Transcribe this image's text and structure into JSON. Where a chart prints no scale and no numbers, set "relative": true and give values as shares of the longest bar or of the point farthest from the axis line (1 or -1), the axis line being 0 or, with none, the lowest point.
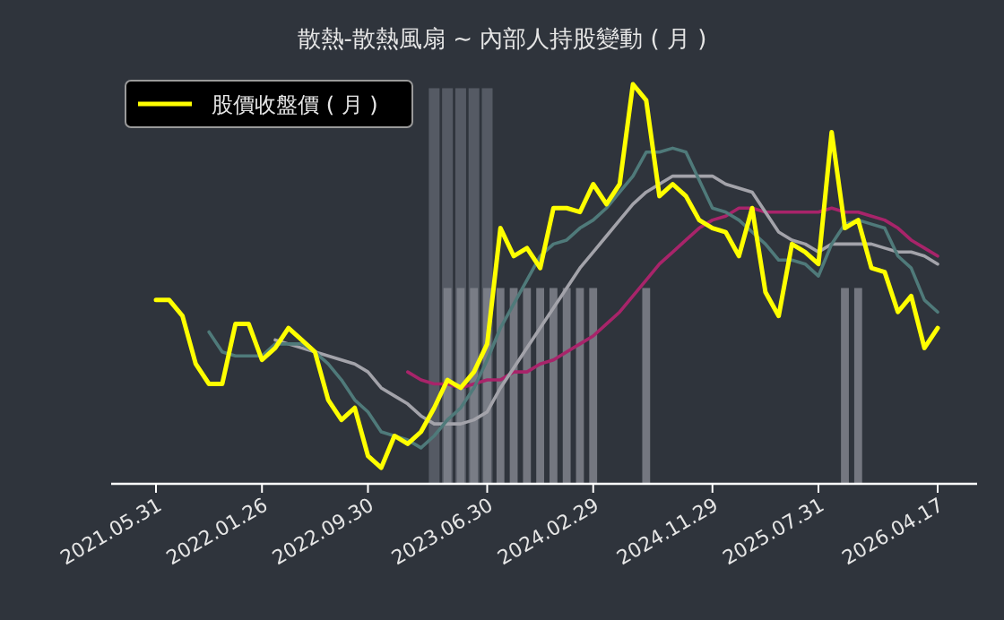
{
  "chart_data": {
    "type": "line",
    "title": "散熱-散熱風扇 ~ 內部人持股變動 ( 月 )",
    "relative": true,
    "legend": "top left",
    "categories": [
      "2021.05.31",
      null,
      null,
      null,
      null,
      null,
      null,
      null,
      "2022.01.26",
      null,
      null,
      null,
      null,
      null,
      null,
      null,
      "2022.09.30",
      null,
      null,
      null,
      null,
      null,
      null,
      null,
      null,
      "2023.06.30",
      null,
      null,
      null,
      null,
      null,
      null,
      null,
      "2024.02.29",
      null,
      null,
      null,
      null,
      null,
      null,
      null,
      null,
      "2024.11.29",
      null,
      null,
      null,
      null,
      null,
      null,
      null,
      "2025.07.31",
      null,
      null,
      null,
      null,
      null,
      null,
      null,
      null,
      "2026.04.17"
    ],
    "series": [
      {
        "type": "bar",
        "color": "#5c616b",
        "values": [
          null,
          null,
          null,
          null,
          null,
          null,
          null,
          null,
          null,
          null,
          null,
          null,
          null,
          null,
          null,
          null,
          null,
          null,
          null,
          null,
          null,
          0.99,
          0.99,
          0.99,
          0.99,
          0.99,
          null,
          null,
          null,
          null,
          null,
          null,
          null,
          null,
          null,
          null,
          null,
          null,
          null,
          null,
          null,
          null,
          null,
          null,
          null,
          null,
          null,
          null,
          null,
          null,
          null,
          null,
          null,
          null,
          null,
          null,
          null,
          null,
          null,
          null
        ]
      },
      {
        "type": "bar",
        "color": "#80848c",
        "values": [
          null,
          null,
          null,
          null,
          null,
          null,
          null,
          null,
          null,
          null,
          null,
          null,
          null,
          null,
          null,
          null,
          null,
          null,
          null,
          null,
          null,
          null,
          0.49,
          0.49,
          0.49,
          0.49,
          0.49,
          0.49,
          0.49,
          0.49,
          0.49,
          0.49,
          0.49,
          0.49,
          null,
          null,
          null,
          0.49,
          null,
          null,
          null,
          null,
          null,
          null,
          null,
          null,
          null,
          null,
          null,
          null,
          null,
          null,
          0.49,
          0.49,
          null,
          null,
          null,
          null,
          null,
          null
        ]
      },
      {
        "color": "#a8246a",
        "values": [
          null,
          null,
          null,
          null,
          null,
          null,
          null,
          null,
          null,
          null,
          null,
          null,
          null,
          null,
          null,
          null,
          null,
          null,
          null,
          0.28,
          0.26,
          0.25,
          0.25,
          0.24,
          0.25,
          0.26,
          0.26,
          0.28,
          0.28,
          0.3,
          0.31,
          0.33,
          0.35,
          0.37,
          0.4,
          0.43,
          0.47,
          0.51,
          0.55,
          0.58,
          0.61,
          0.64,
          0.66,
          0.67,
          0.69,
          0.69,
          0.68,
          0.68,
          0.68,
          0.68,
          0.68,
          0.69,
          0.68,
          0.68,
          0.67,
          0.66,
          0.64,
          0.61,
          0.59,
          0.57
        ]
      },
      {
        "color": "#a3a3aa",
        "values": [
          null,
          null,
          null,
          null,
          null,
          null,
          null,
          null,
          null,
          0.36,
          0.35,
          0.34,
          0.33,
          0.32,
          0.31,
          0.3,
          0.28,
          0.24,
          0.22,
          0.2,
          0.17,
          0.15,
          0.15,
          0.15,
          0.16,
          0.18,
          0.24,
          0.29,
          0.34,
          0.39,
          0.44,
          0.49,
          0.54,
          0.58,
          0.62,
          0.66,
          0.7,
          0.73,
          0.75,
          0.77,
          0.77,
          0.77,
          0.77,
          0.75,
          0.74,
          0.73,
          0.68,
          0.63,
          0.61,
          0.6,
          0.58,
          0.6,
          0.6,
          0.6,
          0.6,
          0.59,
          0.58,
          0.58,
          0.57,
          0.55
        ]
      },
      {
        "color": "#4f7a7a",
        "values": [
          null,
          null,
          null,
          null,
          0.38,
          0.33,
          0.32,
          0.32,
          0.32,
          0.35,
          0.35,
          0.35,
          0.33,
          0.3,
          0.26,
          0.21,
          0.18,
          0.13,
          0.12,
          0.11,
          0.09,
          0.12,
          0.16,
          0.19,
          0.24,
          0.31,
          0.39,
          0.45,
          0.51,
          0.57,
          0.6,
          0.61,
          0.64,
          0.66,
          0.69,
          0.73,
          0.77,
          0.83,
          0.83,
          0.84,
          0.83,
          0.76,
          0.69,
          0.68,
          0.66,
          0.63,
          0.6,
          0.56,
          0.56,
          0.55,
          0.52,
          0.6,
          0.65,
          0.66,
          0.65,
          0.64,
          0.57,
          0.54,
          0.46,
          0.43
        ]
      },
      {
        "name": "股價收盤價 ( 月 )",
        "color": "#ffff00",
        "values": [
          0.46,
          0.46,
          0.42,
          0.3,
          0.25,
          0.25,
          0.4,
          0.4,
          0.31,
          0.34,
          0.39,
          0.36,
          0.33,
          0.21,
          0.16,
          0.19,
          0.07,
          0.04,
          0.12,
          0.1,
          0.13,
          0.19,
          0.26,
          0.24,
          0.28,
          0.35,
          0.64,
          0.57,
          0.59,
          0.54,
          0.69,
          0.69,
          0.68,
          0.75,
          0.7,
          0.75,
          1,
          0.96,
          0.72,
          0.75,
          0.72,
          0.66,
          0.64,
          0.63,
          0.57,
          0.69,
          0.48,
          0.42,
          0.6,
          0.58,
          0.55,
          0.88,
          0.64,
          0.66,
          0.54,
          0.53,
          0.43,
          0.47,
          0.34,
          0.39
        ]
      }
    ]
  }
}
